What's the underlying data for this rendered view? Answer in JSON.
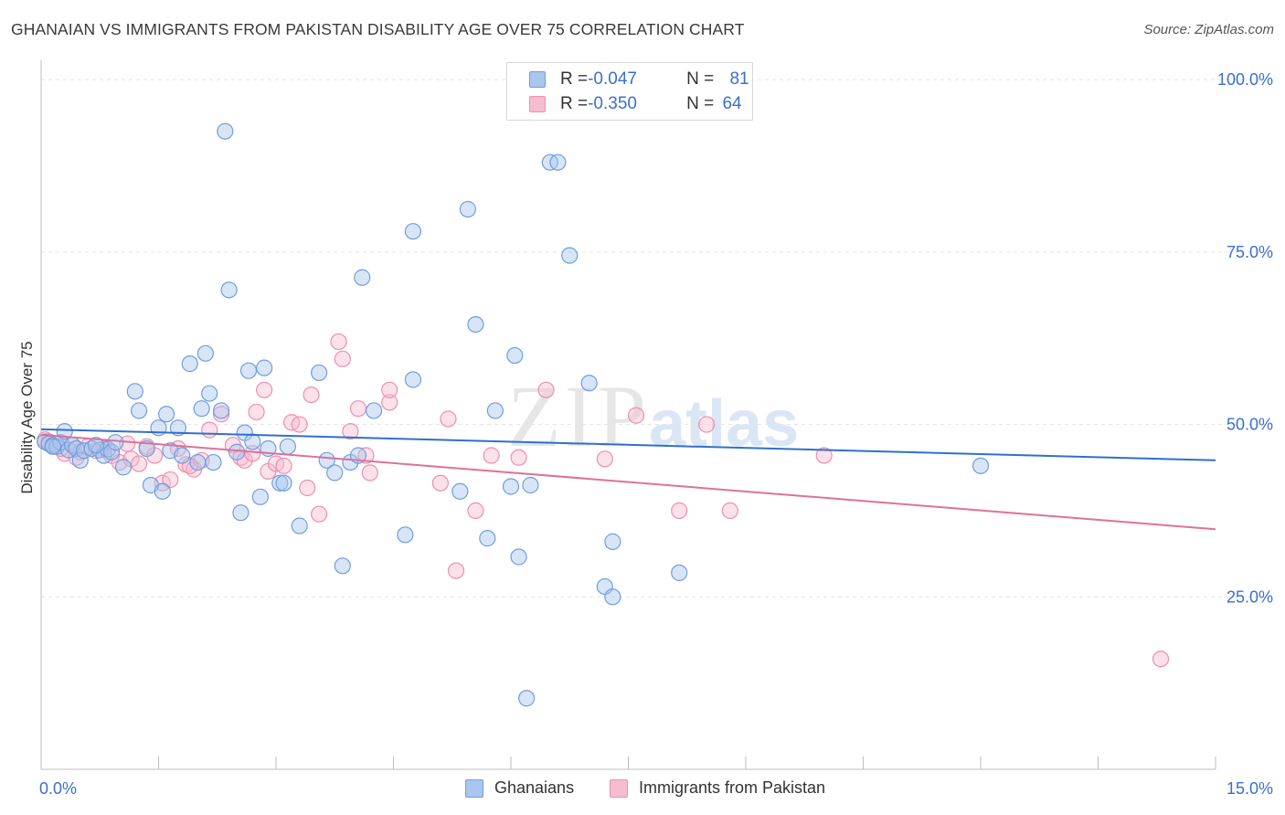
{
  "title": "GHANAIAN VS IMMIGRANTS FROM PAKISTAN DISABILITY AGE OVER 75 CORRELATION CHART",
  "source": "Source: ZipAtlas.com",
  "watermark": {
    "zip": "ZIP",
    "atlas": "atlas"
  },
  "legend_top": {
    "rows": [
      {
        "r_label": "R = ",
        "r_value": "-0.047",
        "n_label": "N = ",
        "n_value": "81"
      },
      {
        "r_label": "R = ",
        "r_value": "-0.350",
        "n_label": "N = ",
        "n_value": "64"
      }
    ]
  },
  "legend_bottom": {
    "series1": "Ghanaians",
    "series2": "Immigrants from Pakistan"
  },
  "colors": {
    "blue_fill": "#a9c6ee",
    "blue_stroke": "#6f9ee0",
    "blue_line": "#2f6fd0",
    "pink_fill": "#f6bccf",
    "pink_stroke": "#ee8fb0",
    "pink_line": "#e0709a",
    "tick_label": "#3a6fd0"
  },
  "chart_data": {
    "type": "scatter",
    "title": "GHANAIAN VS IMMIGRANTS FROM PAKISTAN DISABILITY AGE OVER 75 CORRELATION CHART",
    "xlabel": "",
    "ylabel": "Disability Age Over 75",
    "xlim": [
      0,
      15
    ],
    "ylim": [
      0,
      102
    ],
    "x_tick_labels": [
      "0.0%",
      "15.0%"
    ],
    "y_ticks": [
      25,
      50,
      75,
      100
    ],
    "y_tick_labels": [
      "25.0%",
      "50.0%",
      "75.0%",
      "100.0%"
    ],
    "grid": true,
    "series": [
      {
        "name": "Ghanaians",
        "r": -0.047,
        "n": 81,
        "trend": {
          "x": [
            0,
            15
          ],
          "y": [
            49.3,
            44.8
          ]
        },
        "points": [
          [
            0.05,
            47.5
          ],
          [
            0.1,
            47.2
          ],
          [
            0.15,
            47.0
          ],
          [
            0.2,
            46.8
          ],
          [
            0.25,
            47.4
          ],
          [
            0.3,
            49.0
          ],
          [
            0.35,
            46.3
          ],
          [
            0.4,
            47.0
          ],
          [
            0.45,
            46.5
          ],
          [
            0.5,
            44.8
          ],
          [
            0.55,
            46.2
          ],
          [
            0.65,
            46.5
          ],
          [
            0.75,
            46.3
          ],
          [
            0.8,
            45.5
          ],
          [
            0.85,
            46.4
          ],
          [
            0.9,
            46.0
          ],
          [
            0.95,
            47.4
          ],
          [
            1.05,
            43.8
          ],
          [
            1.2,
            54.8
          ],
          [
            1.25,
            52.0
          ],
          [
            1.35,
            46.5
          ],
          [
            1.4,
            41.2
          ],
          [
            1.5,
            49.5
          ],
          [
            1.55,
            40.3
          ],
          [
            1.6,
            51.5
          ],
          [
            1.65,
            46.2
          ],
          [
            1.75,
            49.5
          ],
          [
            1.8,
            45.5
          ],
          [
            1.9,
            58.8
          ],
          [
            2.0,
            44.5
          ],
          [
            2.05,
            52.3
          ],
          [
            2.1,
            60.3
          ],
          [
            2.15,
            54.5
          ],
          [
            2.2,
            44.5
          ],
          [
            2.3,
            52.0
          ],
          [
            2.35,
            92.5
          ],
          [
            2.4,
            69.5
          ],
          [
            2.5,
            46.0
          ],
          [
            2.55,
            37.2
          ],
          [
            2.6,
            48.8
          ],
          [
            2.65,
            57.8
          ],
          [
            2.7,
            47.5
          ],
          [
            2.8,
            39.5
          ],
          [
            2.85,
            58.2
          ],
          [
            2.9,
            46.5
          ],
          [
            3.05,
            41.5
          ],
          [
            3.1,
            41.5
          ],
          [
            3.15,
            46.8
          ],
          [
            3.3,
            35.3
          ],
          [
            3.55,
            57.5
          ],
          [
            3.65,
            44.8
          ],
          [
            3.75,
            43.0
          ],
          [
            3.85,
            29.5
          ],
          [
            3.95,
            44.5
          ],
          [
            4.05,
            45.5
          ],
          [
            4.1,
            71.3
          ],
          [
            4.25,
            52.0
          ],
          [
            4.65,
            34.0
          ],
          [
            4.75,
            56.5
          ],
          [
            4.75,
            78.0
          ],
          [
            5.35,
            40.3
          ],
          [
            5.45,
            81.2
          ],
          [
            5.55,
            64.5
          ],
          [
            5.7,
            33.5
          ],
          [
            5.8,
            52.0
          ],
          [
            6.0,
            41.0
          ],
          [
            6.05,
            60.0
          ],
          [
            6.1,
            30.8
          ],
          [
            6.2,
            10.3
          ],
          [
            6.25,
            41.2
          ],
          [
            6.5,
            88.0
          ],
          [
            6.6,
            88.0
          ],
          [
            6.75,
            74.5
          ],
          [
            7.0,
            56.0
          ],
          [
            7.2,
            26.5
          ],
          [
            7.3,
            33.0
          ],
          [
            7.3,
            25.0
          ],
          [
            8.15,
            28.5
          ],
          [
            12.0,
            44.0
          ],
          [
            0.15,
            46.8
          ],
          [
            0.7,
            47.0
          ]
        ]
      },
      {
        "name": "Immigrants from Pakistan",
        "r": -0.35,
        "n": 64,
        "trend": {
          "x": [
            0,
            15
          ],
          "y": [
            48.5,
            34.8
          ]
        },
        "points": [
          [
            0.05,
            47.8
          ],
          [
            0.1,
            47.5
          ],
          [
            0.15,
            46.8
          ],
          [
            0.2,
            47.2
          ],
          [
            0.3,
            45.8
          ],
          [
            0.4,
            47.0
          ],
          [
            0.45,
            45.2
          ],
          [
            0.5,
            46.0
          ],
          [
            0.6,
            46.8
          ],
          [
            0.7,
            46.2
          ],
          [
            0.8,
            46.5
          ],
          [
            0.9,
            45.5
          ],
          [
            1.0,
            44.5
          ],
          [
            1.1,
            47.2
          ],
          [
            1.15,
            45.0
          ],
          [
            1.25,
            44.3
          ],
          [
            1.35,
            46.8
          ],
          [
            1.45,
            45.5
          ],
          [
            1.55,
            41.5
          ],
          [
            1.65,
            42.0
          ],
          [
            1.75,
            46.5
          ],
          [
            1.85,
            44.2
          ],
          [
            1.95,
            43.5
          ],
          [
            2.05,
            44.8
          ],
          [
            2.15,
            49.2
          ],
          [
            2.3,
            51.5
          ],
          [
            2.45,
            47.0
          ],
          [
            2.55,
            45.2
          ],
          [
            2.6,
            44.8
          ],
          [
            2.7,
            45.8
          ],
          [
            2.75,
            51.8
          ],
          [
            2.85,
            55.0
          ],
          [
            2.9,
            43.2
          ],
          [
            3.0,
            44.3
          ],
          [
            3.1,
            44.0
          ],
          [
            3.2,
            50.3
          ],
          [
            3.3,
            50.0
          ],
          [
            3.4,
            40.8
          ],
          [
            3.45,
            54.3
          ],
          [
            3.55,
            37.0
          ],
          [
            3.8,
            62.0
          ],
          [
            3.85,
            59.5
          ],
          [
            3.95,
            49.0
          ],
          [
            4.05,
            52.3
          ],
          [
            4.15,
            45.5
          ],
          [
            4.2,
            43.0
          ],
          [
            4.45,
            53.2
          ],
          [
            4.45,
            55.0
          ],
          [
            5.1,
            41.5
          ],
          [
            5.2,
            50.8
          ],
          [
            5.3,
            28.8
          ],
          [
            5.55,
            37.5
          ],
          [
            5.75,
            45.5
          ],
          [
            6.1,
            45.2
          ],
          [
            6.45,
            55.0
          ],
          [
            7.2,
            45.0
          ],
          [
            7.6,
            51.3
          ],
          [
            8.15,
            37.5
          ],
          [
            8.5,
            50.0
          ],
          [
            8.8,
            37.5
          ],
          [
            10.0,
            45.5
          ],
          [
            14.3,
            16.0
          ],
          [
            0.25,
            46.5
          ],
          [
            1.9,
            44.0
          ]
        ]
      }
    ]
  }
}
